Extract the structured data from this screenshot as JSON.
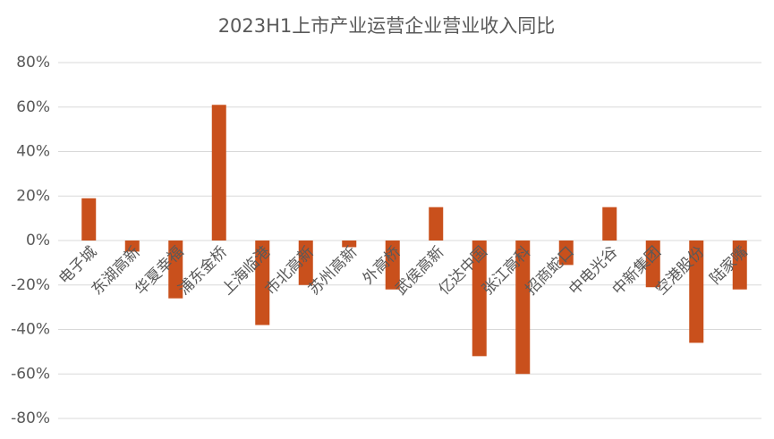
{
  "chart_data": {
    "type": "bar",
    "title": "2023H1上市产业运营企业营业收入同比",
    "categories": [
      "电子城",
      "东湖高新",
      "华夏幸福",
      "浦东金桥",
      "上海临港",
      "市北高新",
      "苏州高新",
      "外高桥",
      "武侯高新",
      "亿达中国",
      "张江高科",
      "招商蛇口",
      "中电光谷",
      "中新集团",
      "空港股份",
      "陆家嘴"
    ],
    "values": [
      19,
      -5,
      -26,
      61,
      -38,
      -20,
      -3,
      -22,
      15,
      -52,
      -60,
      -11,
      15,
      -21,
      -46,
      -22
    ],
    "color": "#c9501c",
    "ylim": [
      -80,
      80
    ],
    "yticks": [
      {
        "value": -80,
        "label": "-80%"
      },
      {
        "value": -60,
        "label": "-60%"
      },
      {
        "value": -40,
        "label": "-40%"
      },
      {
        "value": -20,
        "label": "-20%"
      },
      {
        "value": 0,
        "label": "0%"
      },
      {
        "value": 20,
        "label": "20%"
      },
      {
        "value": 40,
        "label": "40%"
      },
      {
        "value": 60,
        "label": "60%"
      },
      {
        "value": 80,
        "label": "80%"
      }
    ],
    "grid": true
  }
}
